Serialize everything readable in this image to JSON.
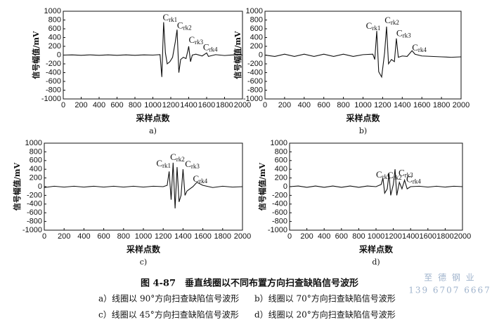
{
  "figure": {
    "title": "图 4-87　垂直线圈以不同布置方向扫查缺陷信号波形",
    "notes": [
      "a）线圈以 90°方向扫查缺陷信号波形",
      "b）线圈以 70°方向扫查缺陷信号波形",
      "c）线圈以 45°方向扫查缺陷信号波形",
      "d）线圈以 20°方向扫查缺陷信号波形"
    ]
  },
  "watermark": [
    "至 德 钢 业",
    "139 6707 6667"
  ],
  "chart_data": [
    {
      "type": "line",
      "caption": "a)",
      "xlabel": "采样点数",
      "ylabel": "信号幅值/mV",
      "xlim": [
        0,
        2000
      ],
      "ylim": [
        -1000,
        1000
      ],
      "xticks": [
        0,
        200,
        400,
        600,
        800,
        1000,
        1200,
        1400,
        1600,
        1800,
        2000
      ],
      "yticks": [
        -1000,
        -800,
        -600,
        -400,
        -200,
        0,
        200,
        400,
        600,
        800,
        1000
      ],
      "x": [
        0,
        100,
        200,
        300,
        400,
        500,
        600,
        700,
        800,
        900,
        1000,
        1080,
        1100,
        1120,
        1140,
        1160,
        1190,
        1220,
        1250,
        1270,
        1290,
        1310,
        1340,
        1370,
        1390,
        1400,
        1420,
        1440,
        1480,
        1550,
        1600,
        1620,
        1700,
        1800,
        1900,
        2000
      ],
      "series": [
        {
          "color": "#111111",
          "values": [
            0,
            5,
            -5,
            5,
            -5,
            5,
            -5,
            5,
            -5,
            5,
            0,
            10,
            -500,
            750,
            50,
            -200,
            -150,
            -50,
            300,
            580,
            -400,
            -100,
            -50,
            -80,
            100,
            200,
            -150,
            0,
            20,
            -20,
            50,
            -30,
            10,
            -10,
            5,
            0
          ]
        }
      ],
      "annotations": [
        {
          "text": "C",
          "sub": "rk1",
          "x": 1110,
          "y": 840
        },
        {
          "text": "C",
          "sub": "rk2",
          "x": 1270,
          "y": 660
        },
        {
          "text": "C",
          "sub": "rk3",
          "x": 1400,
          "y": 330
        },
        {
          "text": "C",
          "sub": "rk4",
          "x": 1560,
          "y": 160
        }
      ]
    },
    {
      "type": "line",
      "caption": "b)",
      "xlabel": "采样点数",
      "ylabel": "信号幅值/mV",
      "xlim": [
        0,
        2000
      ],
      "ylim": [
        -1000,
        1000
      ],
      "xticks": [
        0,
        200,
        400,
        600,
        800,
        1000,
        1200,
        1400,
        1600,
        1800,
        2000
      ],
      "yticks": [
        -1000,
        -800,
        -600,
        -400,
        -200,
        0,
        200,
        400,
        600,
        800,
        1000
      ],
      "x": [
        0,
        100,
        200,
        300,
        400,
        500,
        600,
        700,
        800,
        900,
        1000,
        1100,
        1120,
        1140,
        1160,
        1190,
        1220,
        1240,
        1260,
        1290,
        1320,
        1340,
        1360,
        1400,
        1450,
        1500,
        1530,
        1600,
        1700,
        1800,
        1900,
        2000
      ],
      "series": [
        {
          "color": "#111111",
          "values": [
            0,
            -30,
            20,
            -30,
            20,
            -30,
            20,
            -30,
            20,
            -30,
            10,
            20,
            -100,
            550,
            -380,
            -500,
            50,
            650,
            -200,
            -100,
            -150,
            380,
            -50,
            -20,
            -30,
            100,
            20,
            -20,
            -30,
            -40,
            -50,
            -40
          ]
        }
      ],
      "annotations": [
        {
          "text": "C",
          "sub": "rk1",
          "x": 1030,
          "y": 650
        },
        {
          "text": "C",
          "sub": "rk2",
          "x": 1220,
          "y": 780
        },
        {
          "text": "C",
          "sub": "rk3",
          "x": 1340,
          "y": 480
        },
        {
          "text": "C",
          "sub": "rk4",
          "x": 1500,
          "y": 150
        }
      ]
    },
    {
      "type": "line",
      "caption": "c)",
      "xlabel": "采样点数",
      "ylabel": "信号幅值/mV",
      "xlim": [
        0,
        2000
      ],
      "ylim": [
        -1000,
        1000
      ],
      "xticks": [
        0,
        200,
        400,
        600,
        800,
        1000,
        1200,
        1400,
        1600,
        1800,
        2000
      ],
      "yticks": [
        -1000,
        -800,
        -600,
        -400,
        -200,
        0,
        200,
        400,
        600,
        800,
        1000
      ],
      "x": [
        0,
        100,
        200,
        300,
        400,
        500,
        600,
        700,
        800,
        900,
        1000,
        1100,
        1200,
        1240,
        1260,
        1280,
        1300,
        1320,
        1340,
        1360,
        1380,
        1400,
        1420,
        1440,
        1500,
        1540,
        1600,
        1700,
        1800,
        1900,
        2000
      ],
      "series": [
        {
          "color": "#111111",
          "values": [
            -20,
            10,
            -10,
            10,
            -10,
            10,
            -10,
            10,
            -10,
            10,
            -10,
            10,
            0,
            30,
            350,
            -300,
            550,
            -500,
            450,
            -350,
            -200,
            400,
            -200,
            -100,
            0,
            100,
            30,
            -20,
            10,
            -10,
            0
          ]
        }
      ],
      "annotations": [
        {
          "text": "C",
          "sub": "rk1",
          "x": 1130,
          "y": 520
        },
        {
          "text": "C",
          "sub": "rk2",
          "x": 1270,
          "y": 660
        },
        {
          "text": "C",
          "sub": "rk3",
          "x": 1420,
          "y": 500
        },
        {
          "text": "C",
          "sub": "rk4",
          "x": 1500,
          "y": 160
        }
      ]
    },
    {
      "type": "line",
      "caption": "d)",
      "xlabel": "采样点数",
      "ylabel": "信号幅值/mV",
      "xlim": [
        0,
        2000
      ],
      "ylim": [
        -1000,
        1000
      ],
      "xticks": [
        0,
        200,
        400,
        600,
        800,
        1000,
        1200,
        1400,
        1600,
        1800,
        2000
      ],
      "yticks": [
        -1000,
        -800,
        -600,
        -400,
        -200,
        0,
        200,
        400,
        600,
        800,
        1000
      ],
      "x": [
        0,
        100,
        200,
        300,
        400,
        500,
        600,
        700,
        800,
        900,
        1000,
        1060,
        1080,
        1100,
        1130,
        1150,
        1170,
        1200,
        1220,
        1240,
        1270,
        1300,
        1330,
        1360,
        1400,
        1500,
        1600,
        1700,
        1800,
        1900,
        2000
      ],
      "series": [
        {
          "color": "#111111",
          "values": [
            0,
            15,
            -15,
            15,
            -15,
            15,
            -15,
            15,
            -15,
            15,
            0,
            50,
            200,
            -150,
            -50,
            300,
            -200,
            50,
            400,
            -200,
            100,
            -50,
            150,
            -50,
            0,
            10,
            -10,
            10,
            -10,
            10,
            0
          ]
        }
      ],
      "annotations": [
        {
          "text": "C",
          "sub": "rk1",
          "x": 1000,
          "y": 260
        },
        {
          "text": "C",
          "sub": "rk2",
          "x": 1130,
          "y": 240
        },
        {
          "text": "C",
          "sub": "rk3",
          "x": 1260,
          "y": 300
        },
        {
          "text": "C",
          "sub": "rk4",
          "x": 1350,
          "y": 150
        }
      ]
    }
  ]
}
